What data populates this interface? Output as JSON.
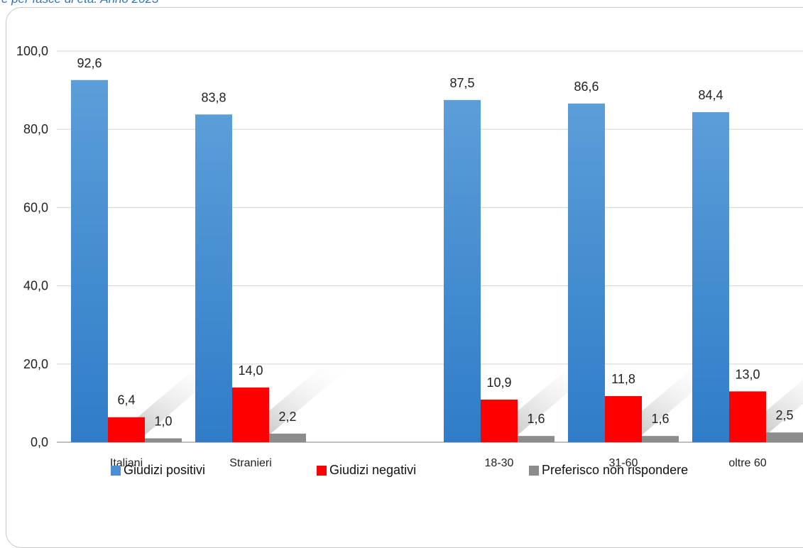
{
  "caption": "e per fasce di età. Anno 2023",
  "chart_data": {
    "type": "bar",
    "categories": [
      "Italiani",
      "Stranieri",
      "",
      "18-30",
      "31-60",
      "oltre 60"
    ],
    "series": [
      {
        "name": "Giudizi positivi",
        "color": "#4a8fd4",
        "values": [
          92.6,
          83.8,
          null,
          87.5,
          86.6,
          84.4
        ]
      },
      {
        "name": "Giudizi negativi",
        "color": "#ff0000",
        "values": [
          6.4,
          14.0,
          null,
          10.9,
          11.8,
          13.0
        ]
      },
      {
        "name": "Preferisco non rispondere",
        "color": "#8c8c8c",
        "values": [
          1.0,
          2.2,
          null,
          1.6,
          1.6,
          2.5
        ]
      }
    ],
    "data_labels": [
      [
        "92,6",
        "83,8",
        "",
        "87,5",
        "86,6",
        "84,4"
      ],
      [
        "6,4",
        "14,0",
        "",
        "10,9",
        "11,8",
        "13,0"
      ],
      [
        "1,0",
        "2,2",
        "",
        "1,6",
        "1,6",
        "2,5"
      ]
    ],
    "ylim": [
      0,
      100
    ],
    "yticks": [
      0,
      20,
      40,
      60,
      80,
      100
    ],
    "ytick_labels": [
      "0,0",
      "20,0",
      "40,0",
      "60,0",
      "80,0",
      "100,0"
    ],
    "grid": true,
    "legend_position": "bottom"
  }
}
